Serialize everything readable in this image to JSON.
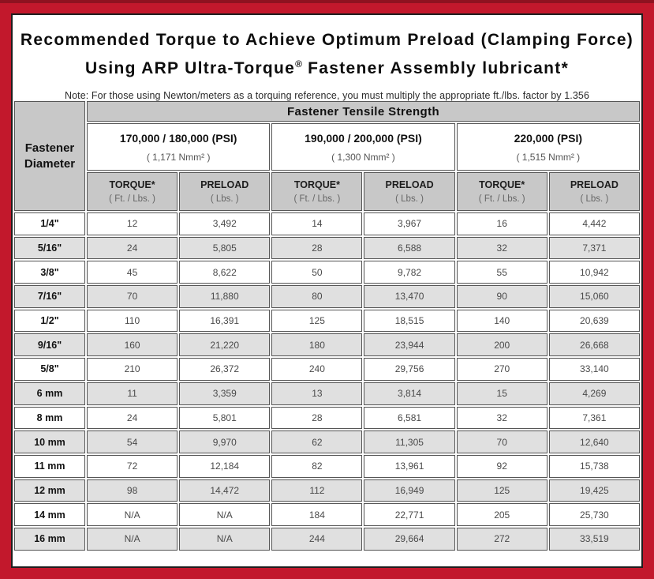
{
  "title": {
    "line1": "Recommended Torque to Achieve Optimum Preload (Clamping Force)",
    "line2_before": "Using ARP Ultra-Torque",
    "line2_reg": "®",
    "line2_after": " Fastener Assembly lubricant*",
    "note": "Note: For those using Newton/meters as a torquing reference, you must multiply the appropriate ft./lbs. factor by 1.356"
  },
  "colors": {
    "border_red": "#c2182c",
    "header_gray": "#c8c8c8",
    "row_alt_gray": "#e0e0e0",
    "cell_border_gray": "#565656"
  },
  "table": {
    "corner_line1": "Fastener",
    "corner_line2": "Diameter",
    "tensile_strength_header": "Fastener Tensile Strength",
    "strength_groups": [
      {
        "psi": "170,000 / 180,000 (PSI)",
        "nmm": "( 1,171 Nmm² )"
      },
      {
        "psi": "190,000 / 200,000 (PSI)",
        "nmm": "( 1,300 Nmm² )"
      },
      {
        "psi": "220,000 (PSI)",
        "nmm": "( 1,515 Nmm² )"
      }
    ],
    "column_headers": {
      "torque_label": "TORQUE*",
      "torque_unit": "( Ft. / Lbs. )",
      "preload_label": "PRELOAD",
      "preload_unit": "( Lbs. )"
    },
    "rows": [
      {
        "dia": "1/4\"",
        "values": [
          "12",
          "3,492",
          "14",
          "3,967",
          "16",
          "4,442"
        ]
      },
      {
        "dia": "5/16\"",
        "values": [
          "24",
          "5,805",
          "28",
          "6,588",
          "32",
          "7,371"
        ]
      },
      {
        "dia": "3/8\"",
        "values": [
          "45",
          "8,622",
          "50",
          "9,782",
          "55",
          "10,942"
        ]
      },
      {
        "dia": "7/16\"",
        "values": [
          "70",
          "11,880",
          "80",
          "13,470",
          "90",
          "15,060"
        ]
      },
      {
        "dia": "1/2\"",
        "values": [
          "110",
          "16,391",
          "125",
          "18,515",
          "140",
          "20,639"
        ]
      },
      {
        "dia": "9/16\"",
        "values": [
          "160",
          "21,220",
          "180",
          "23,944",
          "200",
          "26,668"
        ]
      },
      {
        "dia": "5/8\"",
        "values": [
          "210",
          "26,372",
          "240",
          "29,756",
          "270",
          "33,140"
        ]
      },
      {
        "dia": "6 mm",
        "values": [
          "11",
          "3,359",
          "13",
          "3,814",
          "15",
          "4,269"
        ]
      },
      {
        "dia": "8 mm",
        "values": [
          "24",
          "5,801",
          "28",
          "6,581",
          "32",
          "7,361"
        ]
      },
      {
        "dia": "10 mm",
        "values": [
          "54",
          "9,970",
          "62",
          "11,305",
          "70",
          "12,640"
        ]
      },
      {
        "dia": "11 mm",
        "values": [
          "72",
          "12,184",
          "82",
          "13,961",
          "92",
          "15,738"
        ]
      },
      {
        "dia": "12 mm",
        "values": [
          "98",
          "14,472",
          "112",
          "16,949",
          "125",
          "19,425"
        ]
      },
      {
        "dia": "14 mm",
        "values": [
          "N/A",
          "N/A",
          "184",
          "22,771",
          "205",
          "25,730"
        ]
      },
      {
        "dia": "16 mm",
        "values": [
          "N/A",
          "N/A",
          "244",
          "29,664",
          "272",
          "33,519"
        ]
      }
    ]
  }
}
